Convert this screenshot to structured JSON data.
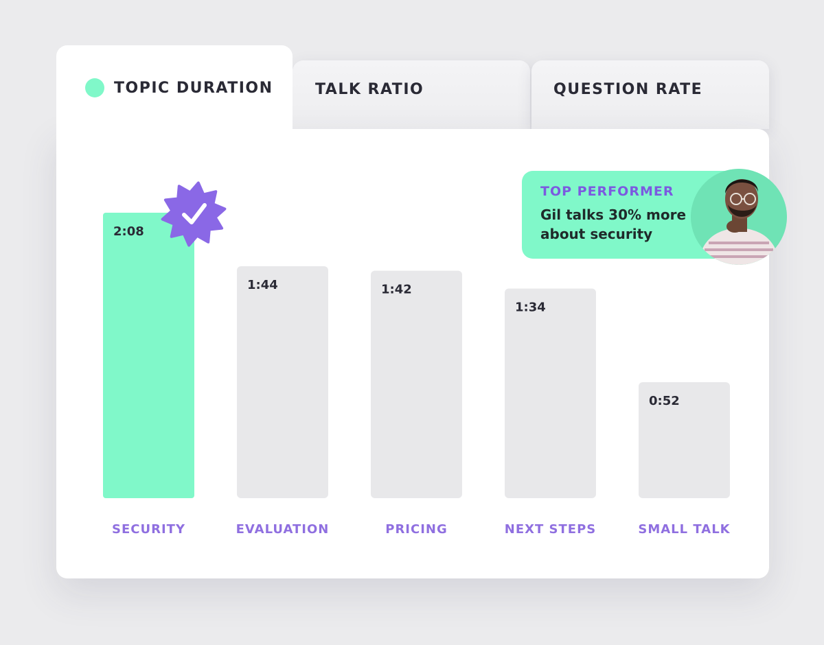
{
  "tabs": [
    {
      "label": "TOPIC DURATION",
      "active": true
    },
    {
      "label": "TALK RATIO",
      "active": false
    },
    {
      "label": "QUESTION RATE",
      "active": false
    }
  ],
  "callout": {
    "title": "TOP PERFORMER",
    "text": "Gil talks 30% more about security",
    "avatar_icon": "person-avatar-icon"
  },
  "badge_icon": "verified-check-badge-icon",
  "colors": {
    "accent_green": "#80f8c9",
    "accent_purple": "#8f6fe0",
    "bar_gray": "#e8e8ea",
    "text_dark": "#2a2a35"
  },
  "chart_data": {
    "type": "bar",
    "categories": [
      "SECURITY",
      "EVALUATION",
      "PRICING",
      "NEXT STEPS",
      "SMALL TALK"
    ],
    "values": [
      128,
      104,
      102,
      94,
      52
    ],
    "value_labels": [
      "2:08",
      "1:44",
      "1:42",
      "1:34",
      "0:52"
    ],
    "unit": "seconds",
    "highlight_index": 0,
    "title": "",
    "xlabel": "",
    "ylabel": "",
    "ylim": [
      0,
      140
    ]
  }
}
